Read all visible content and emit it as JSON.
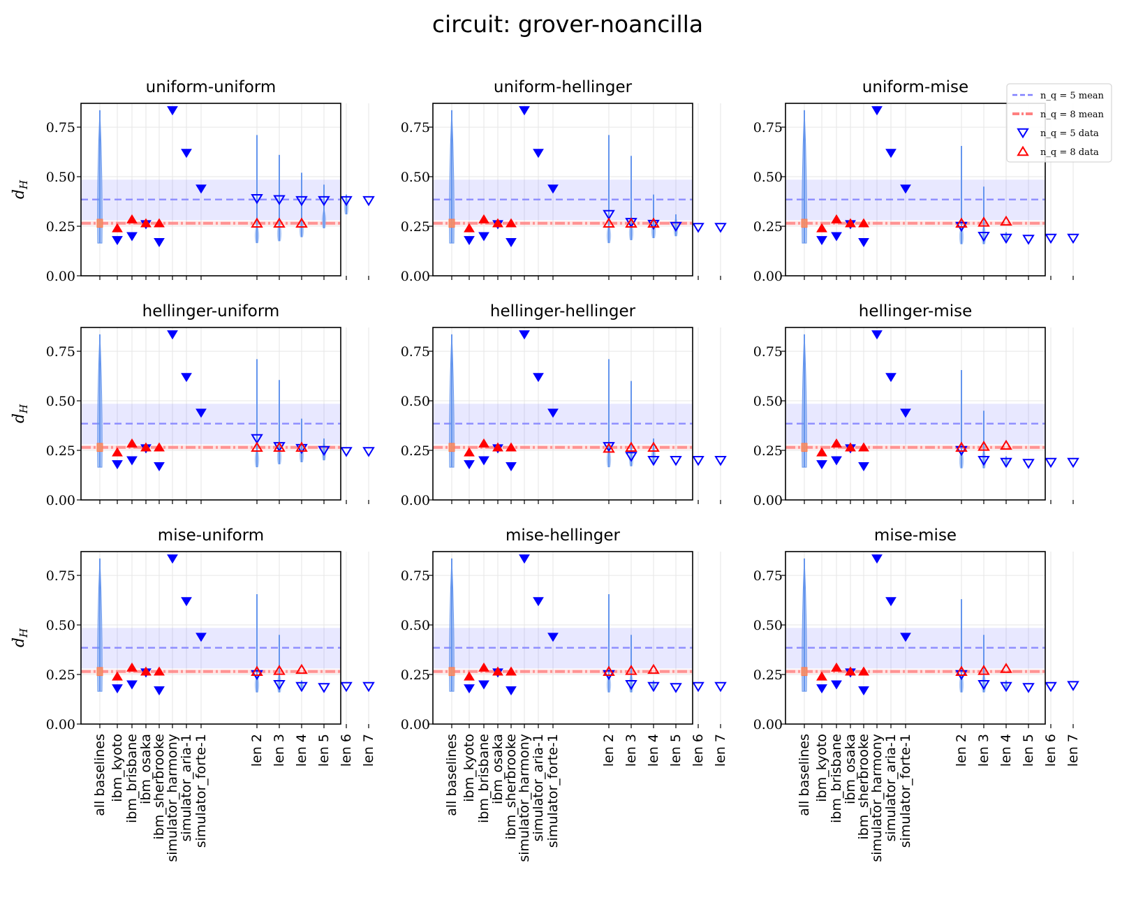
{
  "chart_data": {
    "type": "scatter",
    "title": "circuit: grover-noancilla",
    "ylabel": "d_H",
    "ylim": [
      0,
      0.87
    ],
    "yticks": [
      0.0,
      0.25,
      0.5,
      0.75
    ],
    "ytick_labels": [
      "0.00",
      "0.25",
      "0.50",
      "0.75"
    ],
    "categories": [
      "all baselines",
      "ibm_kyoto",
      "ibm_brisbane",
      "ibm_osaka",
      "ibm_sherbrooke",
      "simulator_harmony",
      "simulator_aria-1",
      "simulator_forte-1",
      "len 2",
      "len 3",
      "len 4",
      "len 5",
      "len 6",
      "len 7"
    ],
    "grid": true,
    "legend": {
      "placement": "top-right",
      "entries": [
        {
          "label": "n_q = 5 mean",
          "style": "dashed",
          "color": "#8080ff"
        },
        {
          "label": "n_q = 8 mean",
          "style": "dashdot",
          "color": "#ff8080"
        },
        {
          "label": "n_q = 5 data",
          "marker": "triangle-down-open",
          "color": "#0000ff"
        },
        {
          "label": "n_q = 8 data",
          "marker": "triangle-up-open",
          "color": "#ff0000"
        }
      ]
    },
    "reference_lines": {
      "nq5_mean": 0.385,
      "nq5_band": [
        0.28,
        0.485
      ],
      "nq8_mean": 0.265,
      "nq8_band": [
        0.255,
        0.275
      ]
    },
    "baselines": {
      "nq5": [
        0.18,
        0.2,
        0.26,
        0.17,
        0.835,
        0.62,
        0.44
      ],
      "nq8": [
        0.24,
        0.285,
        0.265,
        0.265
      ]
    },
    "all_baselines_range": [
      0.165,
      0.835
    ],
    "subplots": [
      {
        "name": "uniform-uniform",
        "nq5": [
          0.39,
          0.385,
          0.38,
          0.38,
          0.38,
          0.38
        ],
        "nq8": [
          0.265,
          0.265,
          0.265,
          null,
          null,
          null
        ],
        "ranges": [
          [
            0.165,
            0.71
          ],
          [
            0.175,
            0.61
          ],
          [
            0.195,
            0.52
          ],
          [
            0.24,
            0.46
          ],
          [
            0.31,
            0.41
          ],
          null
        ]
      },
      {
        "name": "uniform-hellinger",
        "nq5": [
          0.31,
          0.27,
          0.26,
          0.25,
          0.245,
          0.245
        ],
        "nq8": [
          0.265,
          0.265,
          0.265,
          null,
          null,
          null
        ],
        "ranges": [
          [
            0.165,
            0.71
          ],
          [
            0.18,
            0.605
          ],
          [
            0.19,
            0.41
          ],
          [
            0.2,
            0.31
          ],
          null,
          null
        ]
      },
      {
        "name": "uniform-mise",
        "nq5": [
          0.25,
          0.2,
          0.19,
          0.185,
          0.19,
          0.19
        ],
        "nq8": [
          0.265,
          0.27,
          0.275,
          null,
          null,
          null
        ],
        "ranges": [
          [
            0.16,
            0.655
          ],
          [
            0.16,
            0.45
          ],
          [
            0.17,
            0.22
          ],
          null,
          null,
          null
        ]
      },
      {
        "name": "hellinger-uniform",
        "nq5": [
          0.31,
          0.27,
          0.26,
          0.25,
          0.245,
          0.245
        ],
        "nq8": [
          0.265,
          0.265,
          0.265,
          null,
          null,
          null
        ],
        "ranges": [
          [
            0.165,
            0.71
          ],
          [
            0.18,
            0.605
          ],
          [
            0.19,
            0.41
          ],
          [
            0.2,
            0.31
          ],
          null,
          null
        ]
      },
      {
        "name": "hellinger-hellinger",
        "nq5": [
          0.27,
          0.22,
          0.2,
          0.2,
          0.2,
          0.2
        ],
        "nq8": [
          0.26,
          0.265,
          0.265,
          null,
          null,
          null
        ],
        "ranges": [
          [
            0.165,
            0.71
          ],
          [
            0.17,
            0.6
          ],
          [
            0.18,
            0.31
          ],
          null,
          null,
          null
        ]
      },
      {
        "name": "hellinger-mise",
        "nq5": [
          0.25,
          0.2,
          0.19,
          0.185,
          0.19,
          0.19
        ],
        "nq8": [
          0.265,
          0.27,
          0.275,
          null,
          null,
          null
        ],
        "ranges": [
          [
            0.16,
            0.655
          ],
          [
            0.16,
            0.45
          ],
          [
            0.17,
            0.22
          ],
          null,
          null,
          null
        ]
      },
      {
        "name": "mise-uniform",
        "nq5": [
          0.25,
          0.2,
          0.19,
          0.185,
          0.19,
          0.19
        ],
        "nq8": [
          0.265,
          0.27,
          0.275,
          null,
          null,
          null
        ],
        "ranges": [
          [
            0.16,
            0.655
          ],
          [
            0.16,
            0.45
          ],
          [
            0.17,
            0.22
          ],
          null,
          null,
          null
        ]
      },
      {
        "name": "mise-hellinger",
        "nq5": [
          0.25,
          0.2,
          0.19,
          0.185,
          0.19,
          0.19
        ],
        "nq8": [
          0.265,
          0.27,
          0.275,
          null,
          null,
          null
        ],
        "ranges": [
          [
            0.16,
            0.655
          ],
          [
            0.16,
            0.45
          ],
          [
            0.17,
            0.22
          ],
          null,
          null,
          null
        ]
      },
      {
        "name": "mise-mise",
        "nq5": [
          0.25,
          0.2,
          0.19,
          0.185,
          0.19,
          0.195
        ],
        "nq8": [
          0.265,
          0.27,
          0.28,
          null,
          null,
          null
        ],
        "ranges": [
          [
            0.16,
            0.63
          ],
          [
            0.16,
            0.45
          ],
          [
            0.17,
            0.22
          ],
          null,
          null,
          null
        ]
      }
    ]
  }
}
